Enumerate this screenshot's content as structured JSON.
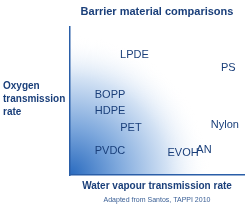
{
  "chart_data": {
    "type": "scatter",
    "title": "Barrier material comparisons",
    "x_label": "Water vapour transmission rate",
    "y_label": "Oxygen transmission rate",
    "annotation": "Adapted from Santos, TAPPI 2010",
    "labels": [
      "LPDE",
      "PS",
      "BOPP",
      "HDPE",
      "PET",
      "Nylon",
      "PVDC",
      "EVOH",
      "AN"
    ],
    "x": [
      37,
      91,
      23,
      23,
      35,
      89,
      23,
      65,
      77
    ],
    "values": [
      81,
      72,
      54,
      43,
      32,
      34,
      16,
      15,
      17
    ],
    "color": "#1a3f7a",
    "xlim": [
      0,
      100
    ],
    "ylim": [
      0,
      100
    ],
    "tick_labels": false,
    "grid": false
  }
}
